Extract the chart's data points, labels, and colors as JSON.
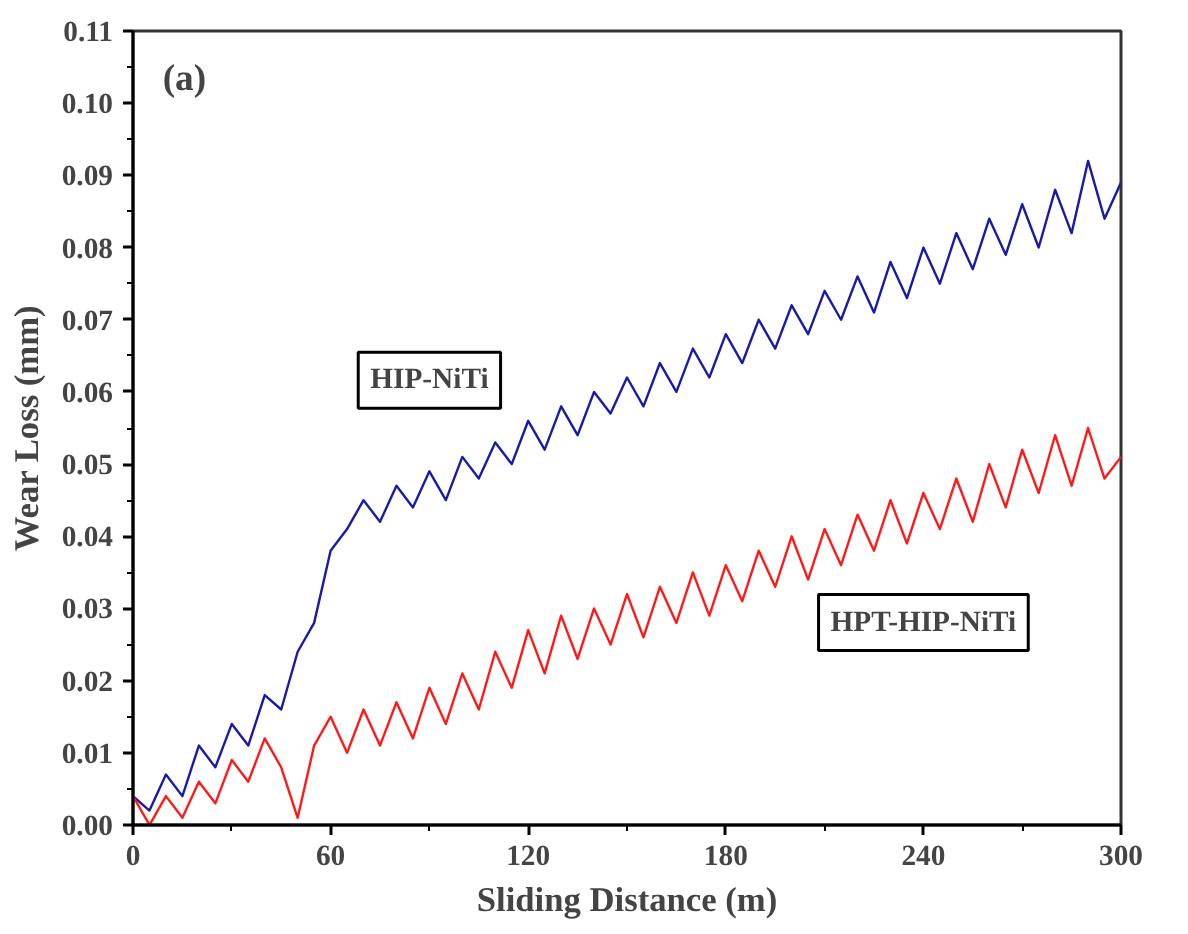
{
  "chart_data": {
    "type": "line",
    "xlabel": "Sliding Distance (m)",
    "ylabel": "Wear Loss (mm)",
    "annotations": [
      "(a)"
    ],
    "x": [
      0,
      5,
      10,
      15,
      20,
      25,
      30,
      35,
      40,
      45,
      50,
      55,
      60,
      65,
      70,
      75,
      80,
      85,
      90,
      95,
      100,
      105,
      110,
      115,
      120,
      125,
      130,
      135,
      140,
      145,
      150,
      155,
      160,
      165,
      170,
      175,
      180,
      185,
      190,
      195,
      200,
      205,
      210,
      215,
      220,
      225,
      230,
      235,
      240,
      245,
      250,
      255,
      260,
      265,
      270,
      275,
      280,
      285,
      290,
      295,
      300
    ],
    "series": [
      {
        "name": "HIP-NiTi",
        "color": "#1a1aa8",
        "values": [
          0.004,
          0.002,
          0.007,
          0.004,
          0.011,
          0.008,
          0.014,
          0.011,
          0.018,
          0.016,
          0.024,
          0.028,
          0.038,
          0.041,
          0.045,
          0.042,
          0.047,
          0.044,
          0.049,
          0.045,
          0.051,
          0.048,
          0.053,
          0.05,
          0.056,
          0.052,
          0.058,
          0.054,
          0.06,
          0.057,
          0.062,
          0.058,
          0.064,
          0.06,
          0.066,
          0.062,
          0.068,
          0.064,
          0.07,
          0.066,
          0.072,
          0.068,
          0.074,
          0.07,
          0.076,
          0.071,
          0.078,
          0.073,
          0.08,
          0.075,
          0.082,
          0.077,
          0.084,
          0.079,
          0.086,
          0.08,
          0.088,
          0.082,
          0.092,
          0.084,
          0.089
        ]
      },
      {
        "name": "HPT-HIP-NiTi",
        "color": "#ff1a1a",
        "values": [
          0.004,
          0.0,
          0.004,
          0.001,
          0.006,
          0.003,
          0.009,
          0.006,
          0.012,
          0.008,
          0.001,
          0.011,
          0.015,
          0.01,
          0.016,
          0.011,
          0.017,
          0.012,
          0.019,
          0.014,
          0.021,
          0.016,
          0.024,
          0.019,
          0.027,
          0.021,
          0.029,
          0.023,
          0.03,
          0.025,
          0.032,
          0.026,
          0.033,
          0.028,
          0.035,
          0.029,
          0.036,
          0.031,
          0.038,
          0.033,
          0.04,
          0.034,
          0.041,
          0.036,
          0.043,
          0.038,
          0.045,
          0.039,
          0.046,
          0.041,
          0.048,
          0.042,
          0.05,
          0.044,
          0.052,
          0.046,
          0.054,
          0.047,
          0.055,
          0.048,
          0.051
        ]
      }
    ],
    "xlim": [
      0,
      300
    ],
    "xticks": [
      0,
      60,
      120,
      180,
      240,
      300
    ],
    "ylim": [
      0,
      0.11
    ],
    "yticks": [
      {
        "value": 0,
        "label": "0.00"
      },
      {
        "value": 0.01,
        "label": "0.01"
      },
      {
        "value": 0.02,
        "label": "0.02"
      },
      {
        "value": 0.03,
        "label": "0.03"
      },
      {
        "value": 0.04,
        "label": "0.04"
      },
      {
        "value": 0.05,
        "label": "0.05"
      },
      {
        "value": 0.06,
        "label": "0.06"
      },
      {
        "value": 0.07,
        "label": "0.07"
      },
      {
        "value": 0.08,
        "label": "0.08"
      },
      {
        "value": 0.09,
        "label": "0.09"
      },
      {
        "value": 0.1,
        "label": "0.10"
      },
      {
        "value": 0.11,
        "label": "0.11"
      }
    ],
    "grid": false
  }
}
